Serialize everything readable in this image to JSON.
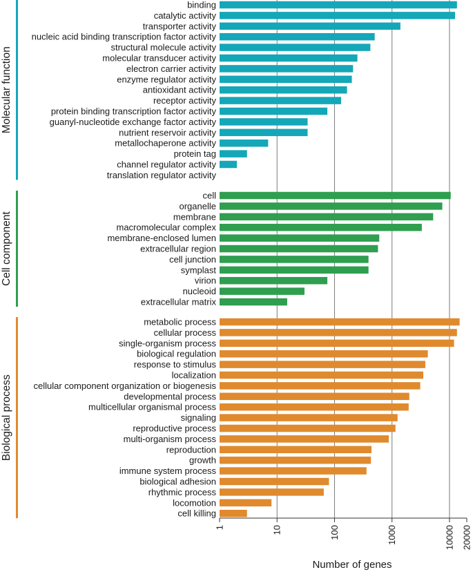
{
  "chart_data": {
    "type": "bar",
    "orientation": "horizontal",
    "xscale": "log",
    "xlabel": "Number of genes",
    "xlim": [
      1,
      20000
    ],
    "xticks": [
      1,
      10,
      100,
      1000,
      10000,
      20000
    ],
    "xtick_labels": [
      "1",
      "10",
      "100",
      "1000",
      "10000",
      "20000"
    ],
    "grid": "vertical lines at 10, 100, 1000, 10000",
    "groups": [
      {
        "name": "Molecular function",
        "color": "#14a7b8",
        "categories": [
          "binding",
          "catalytic activity",
          "transporter activity",
          "nucleic acid binding transcription factor activity",
          "structural molecule activity",
          "molecular transducer activity",
          "electron carrier activity",
          "enzyme regulator activity",
          "antioxidant activity",
          "receptor activity",
          "protein binding transcription factor activity",
          "guanyl-nucleotide exchange factor activity",
          "nutrient reservoir activity",
          "metallochaperone activity",
          "protein tag",
          "channel regulator activity",
          "translation regulator activity"
        ],
        "values": [
          13500,
          12500,
          1400,
          500,
          420,
          250,
          210,
          200,
          165,
          130,
          75,
          34,
          34,
          7,
          3,
          2,
          1
        ]
      },
      {
        "name": "Cell component",
        "color": "#2f9e4f",
        "categories": [
          "cell",
          "organelle",
          "membrane",
          "macromolecular complex",
          "membrane-enclosed lumen",
          "extracellular region",
          "cell junction",
          "symplast",
          "virion",
          "nucleoid",
          "extracellular matrix"
        ],
        "values": [
          10500,
          7500,
          5200,
          3300,
          600,
          570,
          390,
          390,
          75,
          30,
          15
        ]
      },
      {
        "name": "Biological process",
        "color": "#e08a2e",
        "categories": [
          "metabolic process",
          "cellular process",
          "single-organism process",
          "biological regulation",
          "response to stimulus",
          "localization",
          "cellular component organization or biogenesis",
          "developmental process",
          "multicellular organismal process",
          "signaling",
          "reproductive process",
          "multi-organism process",
          "reproduction",
          "growth",
          "immune system process",
          "biological adhesion",
          "rhythmic process",
          "locomotion",
          "cell killing"
        ],
        "values": [
          15000,
          13500,
          12000,
          4200,
          3800,
          3500,
          3100,
          2000,
          1950,
          1250,
          1150,
          880,
          440,
          430,
          360,
          80,
          65,
          8,
          3
        ]
      }
    ]
  }
}
